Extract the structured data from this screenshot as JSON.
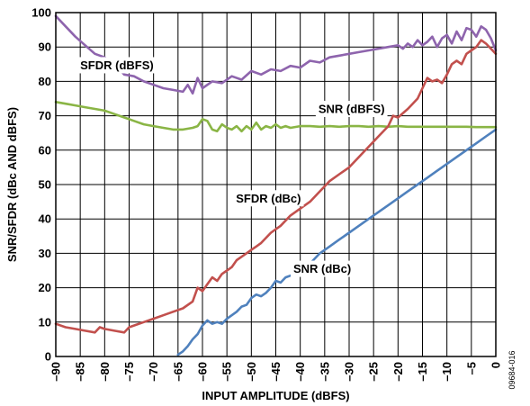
{
  "figure_id": "09684-016",
  "chart_data": {
    "type": "line",
    "title": "",
    "xlabel": "INPUT AMPLITUDE (dBFS)",
    "ylabel": "SNR/SFDR (dBc AND dBFS)",
    "xlim": [
      -90,
      0
    ],
    "ylim": [
      0,
      100
    ],
    "x_ticks": [
      -90,
      -85,
      -80,
      -75,
      -70,
      -65,
      -60,
      -55,
      -50,
      -45,
      -40,
      -35,
      -30,
      -25,
      -20,
      -15,
      -10,
      -5,
      0
    ],
    "x_tick_labels": [
      "–90",
      "–85",
      "–80",
      "–75",
      "–70",
      "–65",
      "–60",
      "–55",
      "–50",
      "–45",
      "–40",
      "–35",
      "–30",
      "–25",
      "–20",
      "–15",
      "–10",
      "–5",
      "0"
    ],
    "y_ticks": [
      0,
      10,
      20,
      30,
      40,
      50,
      60,
      70,
      80,
      90,
      100
    ],
    "y_tick_labels": [
      "0",
      "10",
      "20",
      "30",
      "40",
      "50",
      "60",
      "70",
      "80",
      "90",
      "100"
    ],
    "grid": true,
    "legend": "none",
    "series": [
      {
        "name": "SFDR (dBFS)",
        "color": "#8e64ad",
        "label_at": [
          -77.5,
          84.7
        ],
        "x": [
          -90,
          -88,
          -86,
          -84,
          -82,
          -80,
          -78,
          -76,
          -74,
          -72,
          -70,
          -68,
          -66,
          -64,
          -63,
          -62,
          -61,
          -60,
          -58,
          -56,
          -54,
          -52,
          -50,
          -48,
          -46,
          -44,
          -42,
          -40,
          -38,
          -36,
          -34,
          -32,
          -30,
          -28,
          -26,
          -24,
          -22,
          -20,
          -19,
          -18,
          -17,
          -16,
          -15,
          -14,
          -13,
          -12,
          -11,
          -10,
          -9,
          -8,
          -7,
          -6,
          -5,
          -4,
          -3,
          -2,
          -1,
          0
        ],
        "y": [
          99,
          96,
          93,
          90.5,
          88,
          87,
          85,
          82,
          81.5,
          80,
          79,
          78,
          77.5,
          77,
          79,
          76.5,
          81,
          78,
          80,
          79.5,
          81.5,
          80.5,
          83,
          82,
          83.5,
          83,
          84.5,
          84,
          86,
          85.5,
          87,
          87.5,
          88,
          88.5,
          89,
          89.5,
          90,
          90.5,
          89.5,
          91,
          90,
          92,
          90.5,
          91.5,
          93,
          90,
          92.5,
          93.5,
          91,
          94.5,
          92,
          95.5,
          95,
          93,
          96,
          95,
          92.5,
          89
        ]
      },
      {
        "name": "SNR (dBFS)",
        "color": "#8ab545",
        "label_at": [
          -29.5,
          72
        ],
        "x": [
          -90,
          -88,
          -86,
          -84,
          -82,
          -80,
          -78,
          -76,
          -74,
          -72,
          -70,
          -68,
          -66,
          -64,
          -62,
          -61,
          -60,
          -59,
          -58,
          -57,
          -56,
          -55,
          -54,
          -53,
          -52,
          -51,
          -50,
          -49,
          -48,
          -47,
          -46,
          -45,
          -44,
          -43,
          -42,
          -40,
          -38,
          -36,
          -34,
          -32,
          -30,
          -28,
          -26,
          -24,
          -22,
          -20,
          -18,
          -16,
          -14,
          -12,
          -10,
          -8,
          -6,
          -4,
          -2,
          0
        ],
        "y": [
          74,
          73.5,
          73,
          72.5,
          72,
          71.5,
          70.5,
          69.5,
          68.5,
          67.5,
          67,
          66.5,
          66,
          66,
          66.5,
          67,
          69,
          68.5,
          66,
          65.5,
          67.5,
          66.5,
          66,
          67,
          65.5,
          67,
          66,
          68,
          66,
          67,
          66.5,
          67.5,
          66.5,
          67,
          66.5,
          67,
          67,
          66.8,
          67,
          66.8,
          67,
          67,
          66.8,
          67,
          66.8,
          67,
          66.8,
          66.8,
          66.8,
          66.8,
          66.8,
          66.8,
          66.8,
          66.7,
          66.7,
          66.7
        ]
      },
      {
        "name": "SFDR (dBc)",
        "color": "#c2504d",
        "label_at": [
          -46.5,
          46
        ],
        "x": [
          -90,
          -88,
          -86,
          -84,
          -82,
          -81,
          -80,
          -78,
          -76,
          -75,
          -74,
          -72,
          -70,
          -68,
          -66,
          -64,
          -62,
          -61,
          -60,
          -59,
          -58,
          -57,
          -56,
          -55,
          -54,
          -53,
          -52,
          -51,
          -50,
          -49,
          -48,
          -46,
          -44,
          -42,
          -40,
          -38,
          -36,
          -34,
          -32,
          -30,
          -28,
          -26,
          -24,
          -22,
          -21,
          -20,
          -18,
          -16,
          -15,
          -14,
          -13,
          -12,
          -11,
          -10,
          -9,
          -8,
          -7,
          -6,
          -5,
          -4,
          -3,
          -2,
          -1,
          0
        ],
        "y": [
          9.5,
          8.5,
          8,
          7.5,
          7,
          8.5,
          8,
          7.5,
          7,
          8.5,
          9,
          10,
          11,
          12,
          13,
          14,
          16,
          20,
          19,
          21,
          23,
          22,
          24,
          25,
          26,
          28,
          29,
          30,
          31,
          32,
          33,
          36,
          38,
          41,
          43,
          45,
          48,
          51,
          53,
          55,
          58,
          61,
          64,
          67,
          70,
          69.5,
          72,
          75,
          78,
          81,
          80,
          80.5,
          79.5,
          82,
          85,
          86,
          85,
          88,
          89,
          90,
          92,
          91,
          89.5,
          88
        ]
      },
      {
        "name": "SNR (dBc)",
        "color": "#4f81bd",
        "label_at": [
          -35.5,
          25.5
        ],
        "x": [
          -65,
          -64,
          -63,
          -62,
          -61,
          -60,
          -59,
          -58,
          -57,
          -56,
          -55,
          -54,
          -53,
          -52,
          -51,
          -50,
          -49,
          -48,
          -47,
          -46,
          -45,
          -44,
          -43,
          -42,
          -41,
          -40,
          -38,
          -36,
          -34,
          -32,
          -30,
          -28,
          -26,
          -24,
          -22,
          -20,
          -18,
          -16,
          -14,
          -12,
          -10,
          -8,
          -6,
          -4,
          -2,
          0
        ],
        "y": [
          0.5,
          1.5,
          3,
          5,
          6.5,
          9,
          10.5,
          9.5,
          10,
          9.5,
          11,
          12,
          13,
          14.5,
          15,
          17,
          18,
          17.5,
          18.5,
          20,
          22,
          21.5,
          23,
          23.5,
          24,
          25.5,
          27,
          30,
          32,
          34,
          36,
          38,
          40,
          42,
          44,
          46,
          48,
          50,
          52,
          54,
          56,
          58,
          60,
          62,
          64,
          66
        ]
      }
    ]
  }
}
